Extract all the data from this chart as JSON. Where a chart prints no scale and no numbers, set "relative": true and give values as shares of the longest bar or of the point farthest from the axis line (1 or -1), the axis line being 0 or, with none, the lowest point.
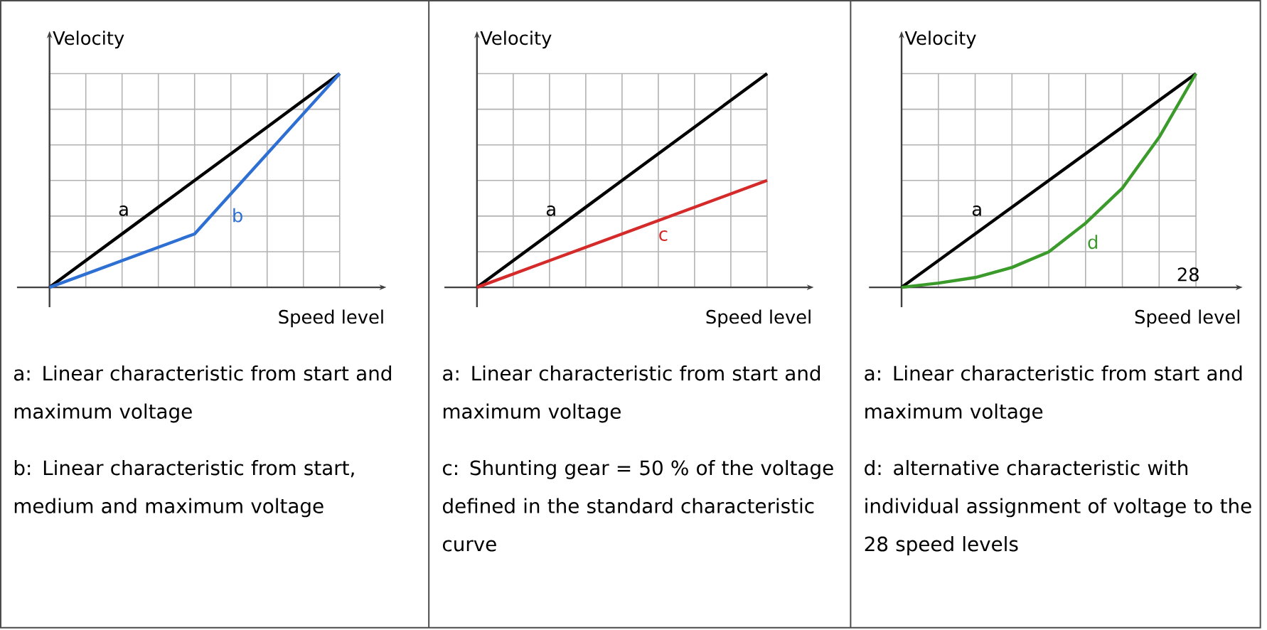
{
  "chart_data": [
    {
      "type": "line",
      "relative": true,
      "grid": true,
      "xlabel": "Speed level",
      "ylabel": "Velocity",
      "categories": [
        null,
        null,
        null,
        null,
        null,
        null,
        null,
        null,
        null
      ],
      "series": [
        {
          "name": "a",
          "color": "#000000",
          "values": [
            0,
            0.125,
            0.25,
            0.375,
            0.5,
            0.625,
            0.75,
            0.875,
            1
          ]
        },
        {
          "name": "b",
          "color": "#2d6fd2",
          "values": [
            0,
            0.0625,
            0.125,
            0.1875,
            0.25,
            0.4375,
            0.625,
            0.8125,
            1
          ]
        }
      ],
      "annotations": [
        "a: Linear characteristic from start and maximum voltage",
        "b: Linear characteristic from start, medium and maximum voltage"
      ]
    },
    {
      "type": "line",
      "relative": true,
      "grid": true,
      "xlabel": "Speed level",
      "ylabel": "Velocity",
      "categories": [
        null,
        null,
        null,
        null,
        null,
        null,
        null,
        null,
        null
      ],
      "series": [
        {
          "name": "a",
          "color": "#000000",
          "values": [
            0,
            0.125,
            0.25,
            0.375,
            0.5,
            0.625,
            0.75,
            0.875,
            1
          ]
        },
        {
          "name": "c",
          "color": "#d42a2a",
          "values": [
            0,
            0.0625,
            0.125,
            0.1875,
            0.25,
            0.3125,
            0.375,
            0.4375,
            0.5
          ]
        }
      ],
      "annotations": [
        "a: Linear characteristic from start and maximum voltage",
        "c: Shunting gear = 50 % of the voltage defined in the standard characteristic curve"
      ]
    },
    {
      "type": "line",
      "relative": true,
      "grid": true,
      "xlabel": "Speed level",
      "ylabel": "Velocity",
      "categories": [
        null,
        null,
        null,
        null,
        null,
        null,
        null,
        null,
        null
      ],
      "series": [
        {
          "name": "a",
          "color": "#000000",
          "values": [
            0,
            0.125,
            0.25,
            0.375,
            0.5,
            0.625,
            0.75,
            0.875,
            1
          ]
        },
        {
          "name": "d",
          "color": "#3a9a2a",
          "values": [
            0,
            0.02,
            0.046,
            0.093,
            0.166,
            0.3,
            0.464,
            0.702,
            1
          ]
        }
      ],
      "annotations": [
        "28",
        "a: Linear characteristic from start and maximum voltage",
        "d: alternative characteristic with individual assignment of voltage to the 28 speed levels"
      ]
    }
  ]
}
